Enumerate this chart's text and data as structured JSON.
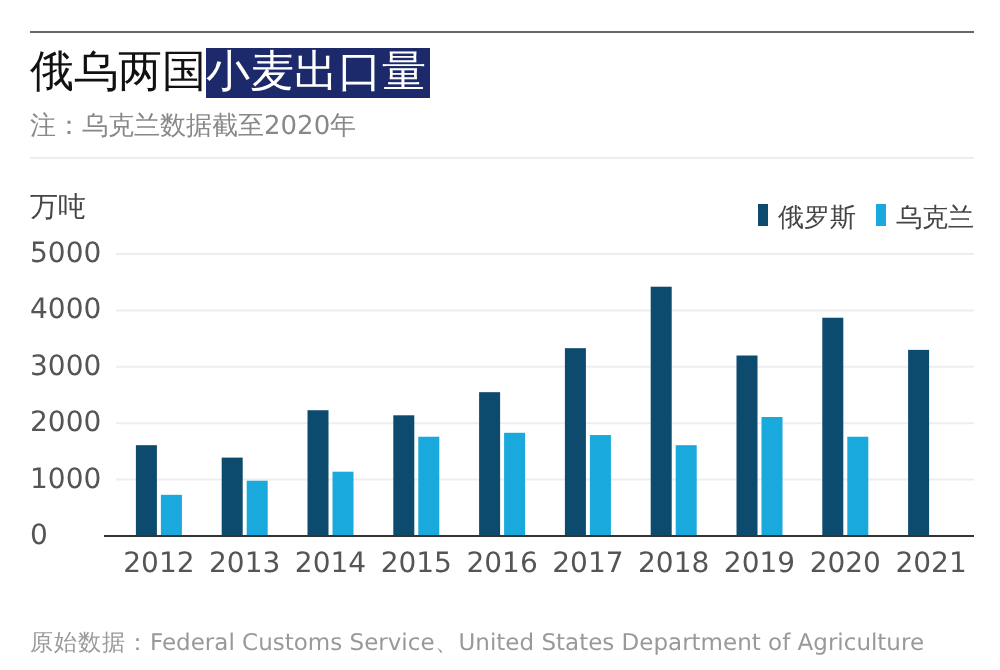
{
  "chart_data": {
    "type": "bar",
    "title": "俄乌两国小麦出口量",
    "subtitle": "注：乌克兰数据截至2020年",
    "ylabel": "万吨",
    "categories": [
      "2012",
      "2013",
      "2014",
      "2015",
      "2016",
      "2017",
      "2018",
      "2019",
      "2020",
      "2021"
    ],
    "series": [
      {
        "name": "俄罗斯",
        "color": "#0c4a6e",
        "values": [
          1610,
          1390,
          2230,
          2140,
          2550,
          3330,
          4420,
          3200,
          3870,
          3300
        ]
      },
      {
        "name": "乌克兰",
        "color": "#19a9dc",
        "values": [
          730,
          980,
          1140,
          1760,
          1830,
          1790,
          1610,
          2110,
          1760,
          null
        ]
      }
    ],
    "ylim": [
      0,
      5000
    ],
    "yticks": [
      0,
      1000,
      2000,
      3000,
      4000,
      5000
    ],
    "grid": "y",
    "legend": "top right",
    "annotations": [
      "原始数据：Federal Customs Service、United States Department of Agriculture"
    ]
  }
}
